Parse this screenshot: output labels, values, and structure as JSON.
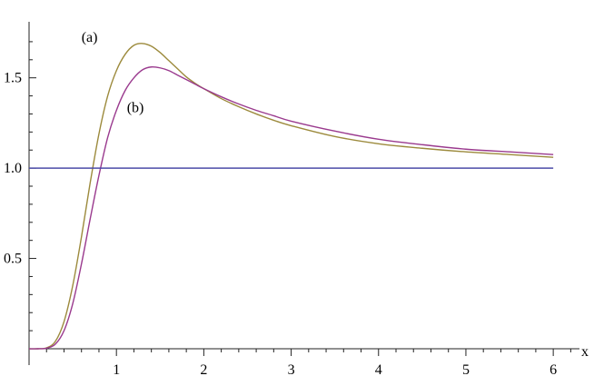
{
  "chart_data": {
    "type": "line",
    "title": "",
    "xlabel": "x",
    "ylabel": "",
    "xlim": [
      0,
      6.3
    ],
    "ylim": [
      0,
      1.78
    ],
    "grid": false,
    "x_ticks": [
      {
        "value": 1,
        "label": "1"
      },
      {
        "value": 2,
        "label": "2"
      },
      {
        "value": 3,
        "label": "3"
      },
      {
        "value": 4,
        "label": "4"
      },
      {
        "value": 5,
        "label": "5"
      },
      {
        "value": 6,
        "label": "6"
      }
    ],
    "y_ticks": [
      {
        "value": 0.5,
        "label": "0.5"
      },
      {
        "value": 1.0,
        "label": "1.0"
      },
      {
        "value": 1.5,
        "label": "1.5"
      }
    ],
    "x_minor_step": 0.2,
    "y_minor_step": 0.1,
    "series": [
      {
        "name": "(a)",
        "color": "#9c8a3c",
        "label_at": {
          "x": 0.6,
          "y": 1.7
        },
        "x": [
          0.0,
          0.1,
          0.2,
          0.3,
          0.4,
          0.5,
          0.6,
          0.7,
          0.8,
          0.9,
          1.0,
          1.1,
          1.2,
          1.3,
          1.4,
          1.5,
          1.6,
          1.7,
          1.8,
          1.9,
          2.0,
          2.2,
          2.4,
          2.6,
          2.8,
          3.0,
          3.5,
          4.0,
          4.5,
          5.0,
          5.5,
          6.0
        ],
        "y": [
          0.0,
          0.0,
          0.005,
          0.04,
          0.15,
          0.35,
          0.62,
          0.92,
          1.19,
          1.4,
          1.54,
          1.63,
          1.68,
          1.69,
          1.675,
          1.64,
          1.595,
          1.55,
          1.505,
          1.47,
          1.44,
          1.385,
          1.34,
          1.3,
          1.265,
          1.235,
          1.175,
          1.135,
          1.11,
          1.09,
          1.075,
          1.06
        ]
      },
      {
        "name": "(b)",
        "color": "#9a3a8e",
        "label_at": {
          "x": 1.12,
          "y": 1.31
        },
        "x": [
          0.0,
          0.1,
          0.2,
          0.3,
          0.4,
          0.5,
          0.6,
          0.7,
          0.8,
          0.9,
          1.0,
          1.1,
          1.2,
          1.3,
          1.4,
          1.5,
          1.6,
          1.7,
          1.8,
          1.9,
          2.0,
          2.2,
          2.4,
          2.6,
          2.8,
          3.0,
          3.5,
          4.0,
          4.5,
          5.0,
          5.5,
          6.0
        ],
        "y": [
          0.0,
          0.0,
          0.003,
          0.025,
          0.1,
          0.25,
          0.47,
          0.72,
          0.96,
          1.17,
          1.32,
          1.43,
          1.5,
          1.545,
          1.56,
          1.555,
          1.54,
          1.515,
          1.49,
          1.465,
          1.44,
          1.395,
          1.355,
          1.32,
          1.29,
          1.26,
          1.205,
          1.16,
          1.13,
          1.105,
          1.09,
          1.075
        ]
      },
      {
        "name": "",
        "color": "#4b4ba8",
        "x": [
          0.0,
          6.0
        ],
        "y": [
          1.0,
          1.0
        ]
      }
    ]
  }
}
